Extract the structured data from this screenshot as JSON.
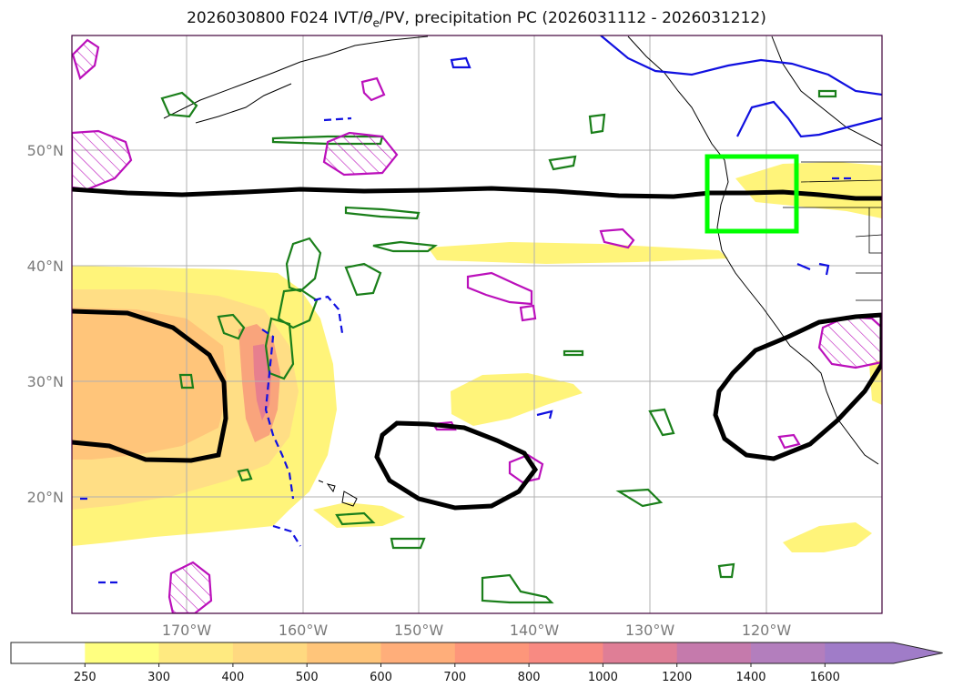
{
  "title": {
    "run": "2026030800",
    "forecast": "F024",
    "fields_prefix": "IVT/",
    "theta": "θ",
    "theta_sub": "e",
    "fields_suffix": "/PV, precipitation PC",
    "period": "(2026031112 - 2026031212)"
  },
  "map": {
    "lat_labels": [
      "50°N",
      "40°N",
      "30°N",
      "20°N"
    ],
    "lon_labels": [
      "170°W",
      "160°W",
      "150°W",
      "140°W",
      "130°W",
      "120°W"
    ],
    "colors": {
      "contour_black": "#000000",
      "contour_green": "#1a7f1a",
      "contour_blue": "#1010e0",
      "contour_magenta": "#bb10bb",
      "highlight_box": "#00ff00",
      "coastline": "#000000",
      "grid": "#b0b0b0",
      "frame": "#40003a"
    }
  },
  "colorbar": {
    "labels": [
      "250",
      "300",
      "400",
      "500",
      "600",
      "700",
      "800",
      "1000",
      "1200",
      "1400",
      "1600"
    ],
    "colors": [
      "#ffffff",
      "#ffff80",
      "#ffea80",
      "#ffd980",
      "#ffc57a",
      "#ffae7a",
      "#fd967a",
      "#f88a82",
      "#df7e96",
      "#c57aac",
      "#b37ebd",
      "#a07cc8"
    ]
  }
}
